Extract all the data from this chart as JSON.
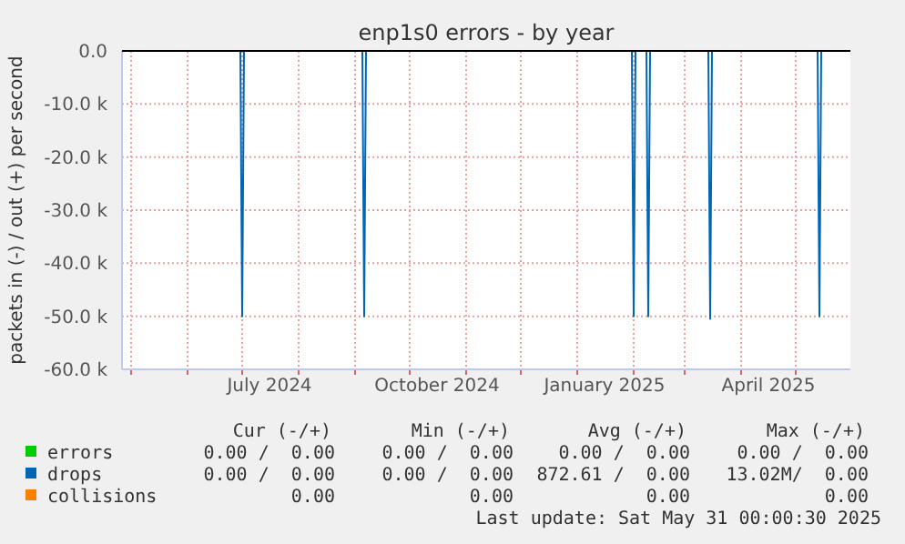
{
  "chart_data": {
    "type": "line",
    "title": "enp1s0 errors - by year",
    "ylabel": "packets in (-) / out (+) per second",
    "xlim": [
      "2024-04-26",
      "2025-05-31"
    ],
    "xticks": [
      {
        "value": "2024-05-01",
        "label": null
      },
      {
        "value": "2024-06-01",
        "label": null
      },
      {
        "value": "2024-07-01",
        "label": null
      },
      {
        "value": "2024-07-16",
        "label": "July 2024"
      },
      {
        "value": "2024-08-01",
        "label": null
      },
      {
        "value": "2024-09-01",
        "label": null
      },
      {
        "value": "2024-10-01",
        "label": null
      },
      {
        "value": "2024-10-16",
        "label": "October 2024"
      },
      {
        "value": "2024-11-01",
        "label": null
      },
      {
        "value": "2024-12-01",
        "label": null
      },
      {
        "value": "2025-01-01",
        "label": null
      },
      {
        "value": "2025-01-16",
        "label": "January 2025"
      },
      {
        "value": "2025-02-01",
        "label": null
      },
      {
        "value": "2025-03-01",
        "label": null
      },
      {
        "value": "2025-04-01",
        "label": null
      },
      {
        "value": "2025-04-16",
        "label": "April 2025"
      },
      {
        "value": "2025-05-01",
        "label": null
      }
    ],
    "ylim": [
      -60000,
      0
    ],
    "yticks": [
      {
        "value": 0,
        "label": "0.0"
      },
      {
        "value": -10000,
        "label": "-10.0 k"
      },
      {
        "value": -20000,
        "label": "-20.0 k"
      },
      {
        "value": -30000,
        "label": "-30.0 k"
      },
      {
        "value": -40000,
        "label": "-40.0 k"
      },
      {
        "value": -50000,
        "label": "-50.0 k"
      },
      {
        "value": -60000,
        "label": "-60.0 k"
      }
    ],
    "grid": true,
    "legend": "bottom left",
    "series": [
      {
        "name": "errors",
        "color": "#00cc00"
      },
      {
        "name": "collisions",
        "color": "#ff8000"
      },
      {
        "name": "drops",
        "color": "#0066b3",
        "x": [
          "2024-04-26",
          "2024-06-30",
          "2024-07-01",
          "2024-07-02",
          "2024-09-05",
          "2024-09-06",
          "2024-09-07",
          "2025-01-31",
          "2025-02-01",
          "2025-02-02",
          "2025-02-08",
          "2025-02-09",
          "2025-02-10",
          "2025-03-14",
          "2025-03-15",
          "2025-03-16",
          "2025-05-13",
          "2025-05-14",
          "2025-05-15",
          "2025-05-31"
        ],
        "values": [
          0,
          0,
          -50000,
          0,
          0,
          -50000,
          0,
          0,
          -50000,
          0,
          0,
          -50000,
          0,
          0,
          -50500,
          0,
          0,
          -50000,
          0,
          0
        ]
      }
    ],
    "annotations": [
      "Cur (-/+)",
      "Min (-/+)",
      "Avg (-/+)",
      "Max (-/+)",
      "0.00 /  0.00",
      "0.00 /  0.00",
      "0.00 /  0.00",
      "0.00 /  0.00",
      "0.00 /  0.00",
      "0.00 /  0.00",
      "872.61 /  0.00",
      "13.02M/  0.00",
      "0.00",
      "0.00",
      "0.00",
      "0.00",
      "Last update: Sat May 31 00:00:30 2025"
    ]
  }
}
